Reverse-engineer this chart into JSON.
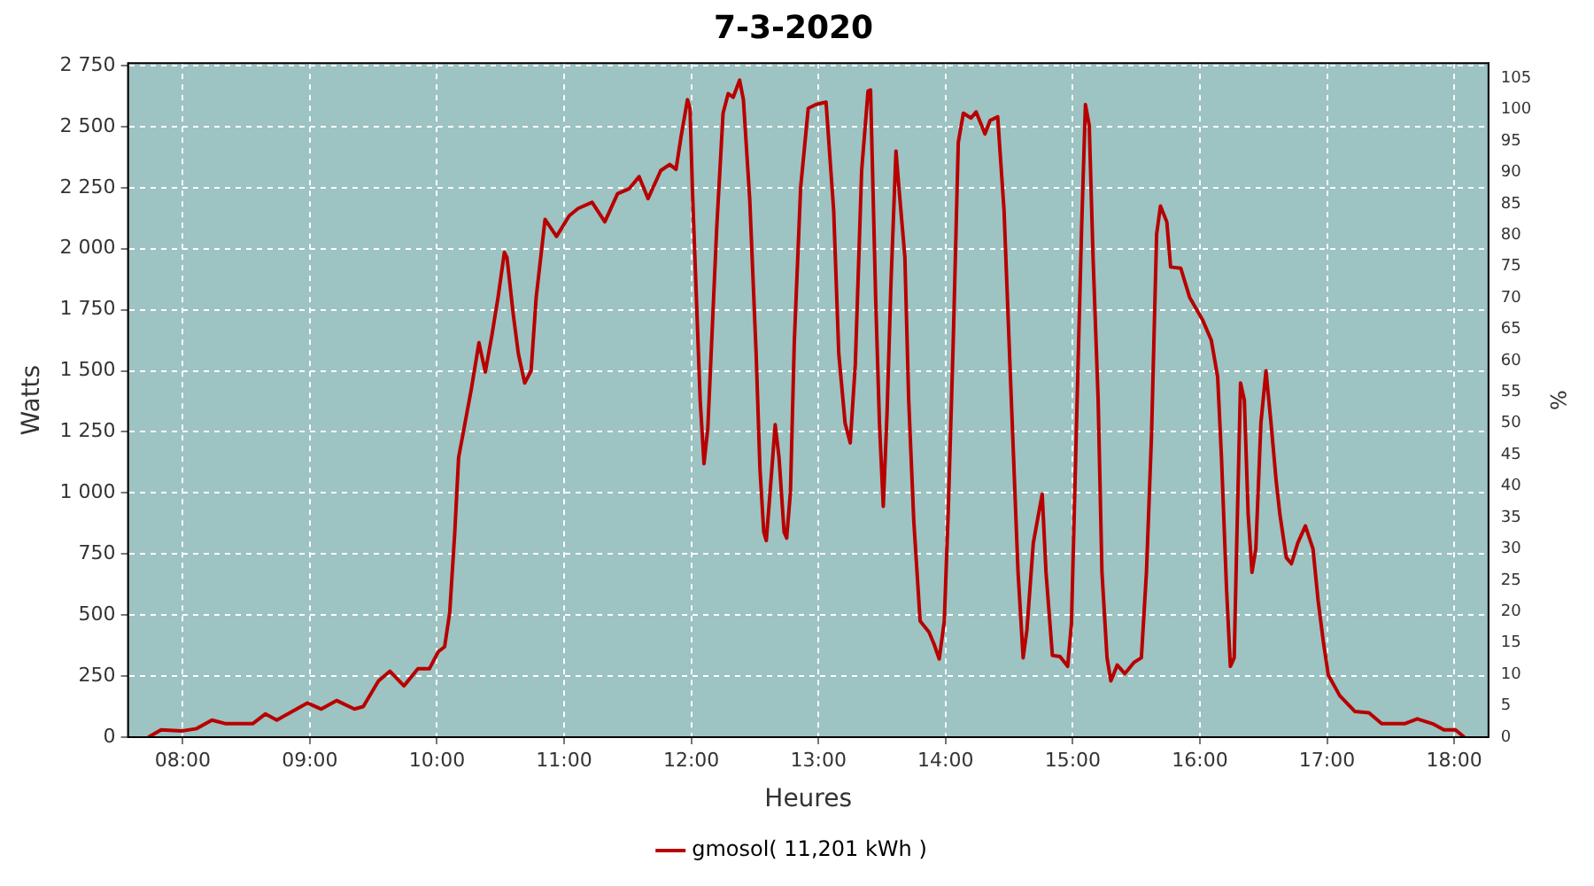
{
  "chart_data": {
    "type": "line",
    "title": "7-3-2020",
    "xlabel": "Heures",
    "ylabel": "Watts",
    "y2label": "%",
    "xlim": [
      7.57,
      18.27
    ],
    "xticks": [
      {
        "value": 8,
        "label": "08:00"
      },
      {
        "value": 9,
        "label": "09:00"
      },
      {
        "value": 10,
        "label": "10:00"
      },
      {
        "value": 11,
        "label": "11:00"
      },
      {
        "value": 12,
        "label": "12:00"
      },
      {
        "value": 13,
        "label": "13:00"
      },
      {
        "value": 14,
        "label": "14:00"
      },
      {
        "value": 15,
        "label": "15:00"
      },
      {
        "value": 16,
        "label": "16:00"
      },
      {
        "value": 17,
        "label": "17:00"
      },
      {
        "value": 18,
        "label": "18:00"
      }
    ],
    "ylim": [
      0,
      2760
    ],
    "yticks": [
      0,
      250,
      500,
      750,
      {
        "value": 1000,
        "label": "1 000"
      },
      {
        "value": 1250,
        "label": "1 250"
      },
      {
        "value": 1500,
        "label": "1 500"
      },
      {
        "value": 1750,
        "label": "1 750"
      },
      {
        "value": 2000,
        "label": "2 000"
      },
      {
        "value": 2250,
        "label": "2 250"
      },
      {
        "value": 2500,
        "label": "2 500"
      },
      {
        "value": 2750,
        "label": "2 750"
      }
    ],
    "y2lim": [
      0,
      107.4
    ],
    "y2ticks": [
      0,
      5,
      10,
      15,
      20,
      25,
      30,
      35,
      40,
      45,
      50,
      55,
      60,
      65,
      70,
      75,
      80,
      85,
      90,
      95,
      100,
      105
    ],
    "grid": true,
    "legend": "bottom",
    "marker": "none",
    "line_style": "solid",
    "series": [
      {
        "name": "gmosol( 11,201 kWh )",
        "color": "#b80000",
        "x": [
          7.73,
          7.83,
          7.99,
          8.11,
          8.23,
          8.34,
          8.55,
          8.65,
          8.74,
          8.98,
          9.09,
          9.21,
          9.35,
          9.42,
          9.54,
          9.63,
          9.74,
          9.85,
          9.94,
          10.01,
          10.06,
          10.1,
          10.14,
          10.17,
          10.22,
          10.27,
          10.33,
          10.38,
          10.43,
          10.48,
          10.53,
          10.55,
          10.6,
          10.64,
          10.69,
          10.74,
          10.78,
          10.85,
          10.94,
          11.04,
          11.11,
          11.22,
          11.32,
          11.42,
          11.51,
          11.59,
          11.66,
          11.76,
          11.83,
          11.88,
          11.92,
          11.97,
          11.99,
          12.01,
          12.05,
          12.07,
          12.1,
          12.13,
          12.16,
          12.2,
          12.25,
          12.29,
          12.33,
          12.38,
          12.41,
          12.46,
          12.51,
          12.54,
          12.57,
          12.59,
          12.62,
          12.66,
          12.69,
          12.73,
          12.75,
          12.78,
          12.81,
          12.86,
          12.92,
          12.98,
          13.06,
          13.12,
          13.16,
          13.21,
          13.25,
          13.29,
          13.34,
          13.39,
          13.41,
          13.45,
          13.48,
          13.51,
          13.54,
          13.57,
          13.61,
          13.63,
          13.68,
          13.71,
          13.75,
          13.8,
          13.87,
          13.91,
          13.95,
          13.99,
          14.02,
          14.06,
          14.1,
          14.14,
          14.2,
          14.24,
          14.31,
          14.35,
          14.41,
          14.46,
          14.51,
          14.57,
          14.61,
          14.64,
          14.69,
          14.76,
          14.79,
          14.84,
          14.9,
          14.96,
          14.99,
          15.03,
          15.07,
          15.1,
          15.13,
          15.16,
          15.2,
          15.23,
          15.27,
          15.3,
          15.35,
          15.41,
          15.48,
          15.54,
          15.58,
          15.62,
          15.66,
          15.69,
          15.74,
          15.77,
          15.85,
          15.92,
          16.02,
          16.09,
          16.14,
          16.17,
          16.21,
          16.24,
          16.27,
          16.29,
          16.32,
          16.35,
          16.38,
          16.41,
          16.44,
          16.48,
          16.52,
          16.56,
          16.6,
          16.63,
          16.68,
          16.72,
          16.77,
          16.83,
          16.89,
          16.93,
          16.97,
          17.01,
          17.1,
          17.22,
          17.33,
          17.43,
          17.61,
          17.71,
          17.83,
          17.92,
          18.01,
          18.08
        ],
        "values": [
          0,
          30,
          25,
          35,
          70,
          55,
          55,
          95,
          70,
          140,
          115,
          150,
          115,
          125,
          230,
          270,
          210,
          280,
          280,
          350,
          370,
          510,
          840,
          1145,
          1285,
          1425,
          1615,
          1495,
          1640,
          1800,
          1985,
          1965,
          1730,
          1570,
          1450,
          1500,
          1800,
          2120,
          2050,
          2135,
          2165,
          2190,
          2110,
          2225,
          2245,
          2295,
          2205,
          2320,
          2345,
          2325,
          2460,
          2610,
          2575,
          2225,
          1660,
          1380,
          1120,
          1265,
          1615,
          2085,
          2555,
          2635,
          2620,
          2690,
          2610,
          2200,
          1570,
          1100,
          840,
          805,
          1005,
          1280,
          1145,
          840,
          815,
          1005,
          1615,
          2250,
          2575,
          2590,
          2600,
          2155,
          1570,
          1285,
          1205,
          1525,
          2320,
          2645,
          2650,
          1800,
          1285,
          945,
          1330,
          1850,
          2400,
          2270,
          1965,
          1380,
          885,
          475,
          430,
          380,
          320,
          475,
          910,
          1615,
          2435,
          2555,
          2535,
          2560,
          2470,
          2525,
          2540,
          2155,
          1475,
          675,
          325,
          440,
          795,
          995,
          675,
          335,
          330,
          290,
          465,
          1285,
          2085,
          2590,
          2505,
          1965,
          1380,
          675,
          325,
          230,
          295,
          260,
          305,
          325,
          675,
          1240,
          2060,
          2175,
          2110,
          1925,
          1920,
          1800,
          1710,
          1625,
          1475,
          1145,
          605,
          290,
          325,
          795,
          1450,
          1380,
          910,
          675,
          770,
          1285,
          1500,
          1285,
          1050,
          910,
          735,
          710,
          795,
          865,
          770,
          560,
          395,
          255,
          170,
          105,
          100,
          55,
          55,
          75,
          55,
          30,
          30,
          0
        ]
      }
    ]
  }
}
